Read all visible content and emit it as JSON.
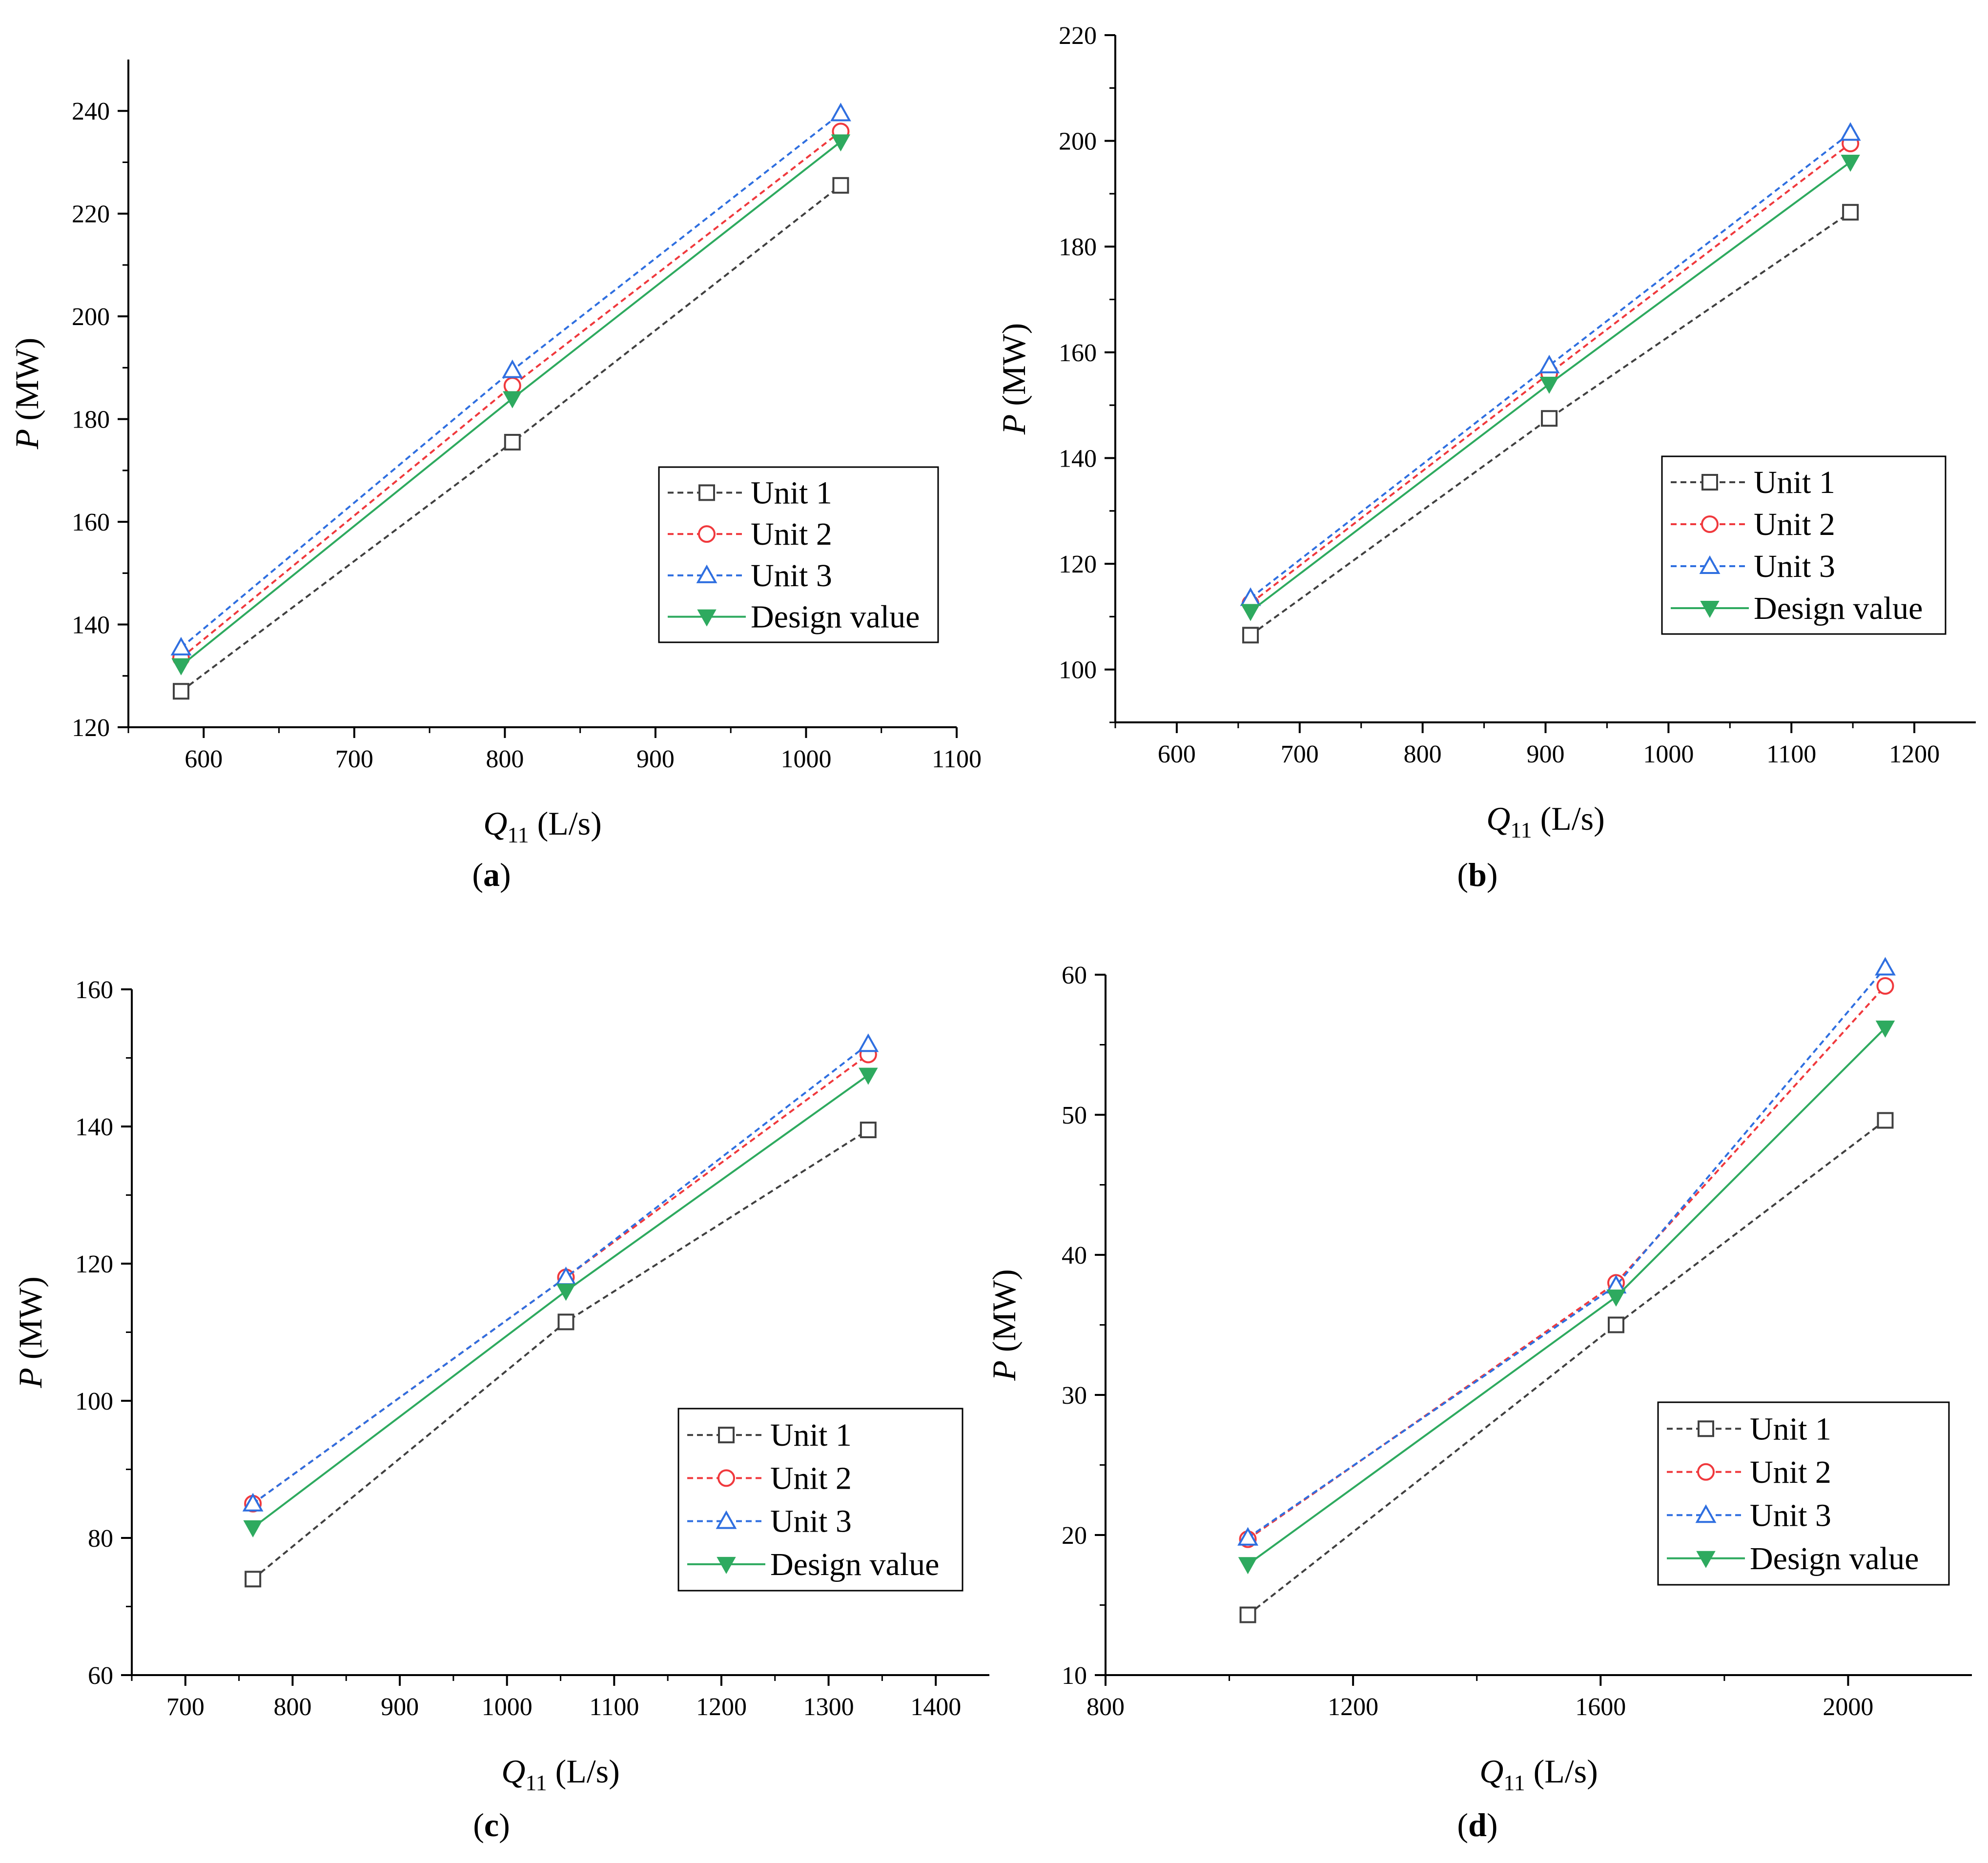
{
  "figure": {
    "series_names": [
      "Unit 1",
      "Unit 2",
      "Unit 3",
      "Design value"
    ],
    "series_colors": {
      "Unit 1": "#404040",
      "Unit 2": "#f0393d",
      "Unit 3": "#2f6fe0",
      "Design value": "#2eaa5f"
    }
  },
  "chart_data": [
    {
      "type": "line",
      "panel": "a",
      "caption_letter": "a",
      "xlabel": "Q11 (L/s)",
      "ylabel": "P (MW)",
      "xlim": [
        550,
        1100
      ],
      "ylim": [
        120,
        250
      ],
      "xticks": [
        600,
        700,
        800,
        900,
        1000,
        1100
      ],
      "yticks": [
        120,
        140,
        160,
        180,
        200,
        220,
        240
      ],
      "x": [
        585,
        805,
        1023
      ],
      "series": [
        {
          "name": "Unit 1",
          "values": [
            127,
            175.5,
            225.5
          ]
        },
        {
          "name": "Unit 2",
          "values": [
            133.5,
            186.5,
            236
          ]
        },
        {
          "name": "Unit 3",
          "values": [
            135.5,
            189.5,
            239.5
          ]
        },
        {
          "name": "Design value",
          "values": [
            132,
            184,
            234
          ]
        }
      ],
      "legend_position": "bottom-right"
    },
    {
      "type": "line",
      "panel": "b",
      "caption_letter": "b",
      "xlabel": "Q11 (L/s)",
      "ylabel": "P (MW)",
      "xlim": [
        550,
        1250
      ],
      "ylim": [
        90,
        220
      ],
      "xticks": [
        600,
        700,
        800,
        900,
        1000,
        1100,
        1200
      ],
      "yticks": [
        100,
        120,
        140,
        160,
        180,
        200,
        220
      ],
      "x": [
        660,
        903,
        1148
      ],
      "series": [
        {
          "name": "Unit 1",
          "values": [
            106.5,
            147.5,
            186.5
          ]
        },
        {
          "name": "Unit 2",
          "values": [
            112.5,
            156,
            199.5
          ]
        },
        {
          "name": "Unit 3",
          "values": [
            113.5,
            157.5,
            201.5
          ]
        },
        {
          "name": "Design value",
          "values": [
            111,
            154,
            196
          ]
        }
      ],
      "legend_position": "bottom-right"
    },
    {
      "type": "line",
      "panel": "c",
      "caption_letter": "c",
      "xlabel": "Q11 (L/s)",
      "ylabel": "P (MW)",
      "xlim": [
        650,
        1450
      ],
      "ylim": [
        60,
        160
      ],
      "xticks": [
        700,
        800,
        900,
        1000,
        1100,
        1200,
        1300,
        1400
      ],
      "yticks": [
        60,
        80,
        100,
        120,
        140,
        160
      ],
      "x": [
        763,
        1055,
        1337
      ],
      "series": [
        {
          "name": "Unit 1",
          "values": [
            74,
            111.5,
            139.5
          ]
        },
        {
          "name": "Unit 2",
          "values": [
            85,
            118,
            150.5
          ]
        },
        {
          "name": "Unit 3",
          "values": [
            85,
            118,
            152
          ]
        },
        {
          "name": "Design value",
          "values": [
            81.5,
            116,
            147.5
          ]
        }
      ],
      "legend_position": "bottom-right"
    },
    {
      "type": "line",
      "panel": "d",
      "caption_letter": "d",
      "xlabel": "Q11 (L/s)",
      "ylabel": "P (MW)",
      "xlim": [
        800,
        2200
      ],
      "ylim": [
        10,
        60
      ],
      "xticks": [
        800,
        1200,
        1600,
        2000
      ],
      "yticks": [
        10,
        20,
        30,
        40,
        50,
        60
      ],
      "x": [
        1030,
        1625,
        2060
      ],
      "series": [
        {
          "name": "Unit 1",
          "values": [
            14.3,
            35,
            49.6
          ]
        },
        {
          "name": "Unit 2",
          "values": [
            19.7,
            38,
            59.2
          ]
        },
        {
          "name": "Unit 3",
          "values": [
            19.8,
            37.8,
            60.5
          ]
        },
        {
          "name": "Design value",
          "values": [
            17.9,
            37,
            56.2
          ]
        }
      ],
      "legend_position": "bottom-right"
    }
  ]
}
